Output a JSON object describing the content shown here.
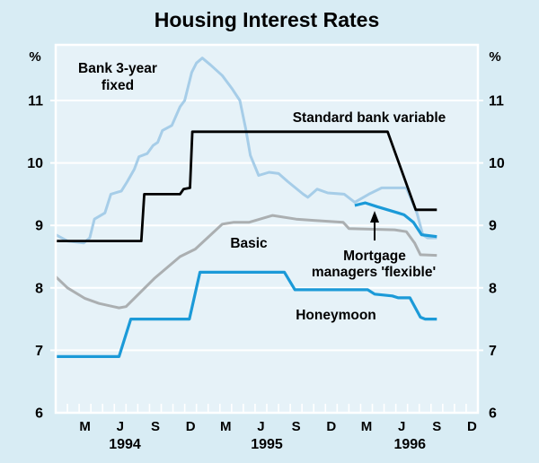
{
  "title": "Housing Interest Rates",
  "colors": {
    "background": "#d8ecf4",
    "plot_background": "#e6f2f8",
    "grid": "#ffffff",
    "black_line": "#000000",
    "pale_blue_line": "#a6cde8",
    "bright_blue_line": "#1b9ad8",
    "gray_line": "#abafb1"
  },
  "chart_data": {
    "type": "line",
    "title": "Housing Interest Rates",
    "x_axis": {
      "unit": "month index from January 1994",
      "range_months": 36,
      "month_labels": [
        {
          "label": "M",
          "month_index": 2
        },
        {
          "label": "J",
          "month_index": 5
        },
        {
          "label": "S",
          "month_index": 8
        },
        {
          "label": "D",
          "month_index": 11
        },
        {
          "label": "M",
          "month_index": 14
        },
        {
          "label": "J",
          "month_index": 17
        },
        {
          "label": "S",
          "month_index": 20
        },
        {
          "label": "D",
          "month_index": 23
        },
        {
          "label": "M",
          "month_index": 26
        },
        {
          "label": "J",
          "month_index": 29
        },
        {
          "label": "S",
          "month_index": 32
        },
        {
          "label": "D",
          "month_index": 35
        }
      ],
      "year_labels": [
        {
          "label": "1994",
          "m_center": 5.9
        },
        {
          "label": "1995",
          "m_center": 18.0
        },
        {
          "label": "1996",
          "m_center": 30.2
        }
      ]
    },
    "y_axis": {
      "unit": "%",
      "min": 6,
      "max": 11.89,
      "ticks": [
        11,
        10,
        9,
        8,
        7,
        6
      ],
      "gridlines": [
        7,
        8,
        9,
        10,
        11
      ],
      "unit_label_left": "%",
      "unit_label_right": "%"
    },
    "series": [
      {
        "name": "Basic",
        "color": "#abafb1",
        "stroke_width": 3,
        "points": [
          [
            0,
            8.18
          ],
          [
            1,
            8.0
          ],
          [
            2.5,
            7.83
          ],
          [
            3.7,
            7.75
          ],
          [
            5.4,
            7.68
          ],
          [
            6,
            7.7
          ],
          [
            8.4,
            8.15
          ],
          [
            10.6,
            8.5
          ],
          [
            11.9,
            8.62
          ],
          [
            14.2,
            9.02
          ],
          [
            15.2,
            9.05
          ],
          [
            16.5,
            9.05
          ],
          [
            18.5,
            9.16
          ],
          [
            20.5,
            9.1
          ],
          [
            22,
            9.08
          ],
          [
            24.5,
            9.05
          ],
          [
            25,
            8.95
          ],
          [
            28.9,
            8.93
          ],
          [
            29.9,
            8.9
          ],
          [
            30.6,
            8.72
          ],
          [
            31.1,
            8.53
          ],
          [
            32.5,
            8.52
          ]
        ]
      },
      {
        "name": "Bank 3-year fixed",
        "color": "#a6cde8",
        "stroke_width": 3,
        "points": [
          [
            0,
            8.85
          ],
          [
            1,
            8.75
          ],
          [
            2.4,
            8.72
          ],
          [
            2.9,
            8.8
          ],
          [
            3.3,
            9.1
          ],
          [
            4.2,
            9.2
          ],
          [
            4.7,
            9.5
          ],
          [
            5.6,
            9.55
          ],
          [
            6.1,
            9.7
          ],
          [
            6.7,
            9.9
          ],
          [
            7.1,
            10.1
          ],
          [
            7.8,
            10.15
          ],
          [
            8.3,
            10.28
          ],
          [
            8.7,
            10.33
          ],
          [
            9.1,
            10.52
          ],
          [
            9.9,
            10.6
          ],
          [
            10.6,
            10.9
          ],
          [
            11,
            11.0
          ],
          [
            11.6,
            11.45
          ],
          [
            12,
            11.6
          ],
          [
            12.5,
            11.68
          ],
          [
            13.2,
            11.57
          ],
          [
            14.2,
            11.4
          ],
          [
            15,
            11.2
          ],
          [
            15.7,
            11.0
          ],
          [
            16.2,
            10.55
          ],
          [
            16.6,
            10.12
          ],
          [
            17.3,
            9.8
          ],
          [
            18.2,
            9.85
          ],
          [
            19,
            9.83
          ],
          [
            19.8,
            9.7
          ],
          [
            21.1,
            9.5
          ],
          [
            21.5,
            9.45
          ],
          [
            22.3,
            9.58
          ],
          [
            23.2,
            9.52
          ],
          [
            24.6,
            9.5
          ],
          [
            25.5,
            9.37
          ],
          [
            26.7,
            9.5
          ],
          [
            27.8,
            9.6
          ],
          [
            29.9,
            9.6
          ],
          [
            30.8,
            9.2
          ],
          [
            31.3,
            8.85
          ],
          [
            31.7,
            8.8
          ],
          [
            32.5,
            8.8
          ]
        ]
      },
      {
        "name": "Honeymoon",
        "color": "#1b9ad8",
        "stroke_width": 3.2,
        "points": [
          [
            0,
            6.9
          ],
          [
            5.4,
            6.9
          ],
          [
            6.4,
            7.5
          ],
          [
            11.4,
            7.5
          ],
          [
            12.3,
            8.25
          ],
          [
            19.5,
            8.25
          ],
          [
            20.4,
            7.97
          ],
          [
            26.6,
            7.97
          ],
          [
            27.2,
            7.9
          ],
          [
            28.7,
            7.87
          ],
          [
            29.2,
            7.84
          ],
          [
            30.2,
            7.84
          ],
          [
            31.1,
            7.53
          ],
          [
            31.5,
            7.5
          ],
          [
            32.5,
            7.5
          ]
        ]
      },
      {
        "name": "Mortgage managers 'flexible'",
        "color": "#1b9ad8",
        "stroke_width": 3.2,
        "points": [
          [
            25.5,
            9.32
          ],
          [
            26.4,
            9.36
          ],
          [
            27.4,
            9.3
          ],
          [
            29.2,
            9.2
          ],
          [
            29.7,
            9.17
          ],
          [
            30.5,
            9.05
          ],
          [
            31.2,
            8.85
          ],
          [
            32.5,
            8.82
          ]
        ]
      },
      {
        "name": "Standard bank variable",
        "color": "#000000",
        "stroke_width": 2.8,
        "points": [
          [
            0,
            8.75
          ],
          [
            7.3,
            8.75
          ],
          [
            7.55,
            9.5
          ],
          [
            10.6,
            9.5
          ],
          [
            10.9,
            9.58
          ],
          [
            11.45,
            9.6
          ],
          [
            11.65,
            10.5
          ],
          [
            28.3,
            10.5
          ],
          [
            30.7,
            9.25
          ],
          [
            32.5,
            9.25
          ]
        ]
      }
    ],
    "annotations": {
      "bank_3yr_line1": "Bank 3-year",
      "bank_3yr_line2": "fixed",
      "std_variable": "Standard bank variable",
      "basic": "Basic",
      "mortgage_line1": "Mortgage",
      "mortgage_line2": "managers 'flexible'",
      "honeymoon": "Honeymoon"
    },
    "legend_position": "inline-labels",
    "grid": true
  }
}
